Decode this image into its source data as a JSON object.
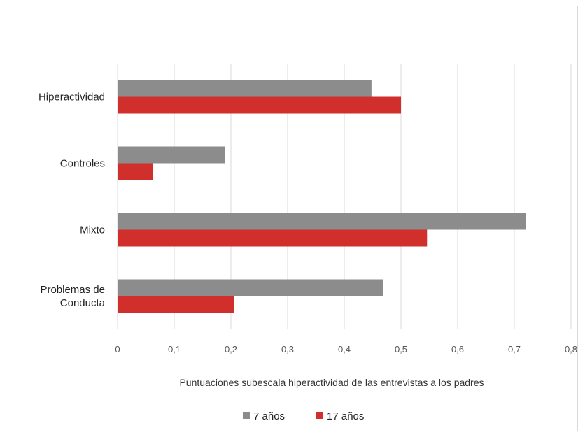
{
  "chart_data": {
    "type": "bar",
    "orientation": "horizontal",
    "categories": [
      "Hiperactividad",
      "Controles",
      "Mixto",
      "Problemas de Conducta"
    ],
    "category_lines": [
      [
        "Hiperactividad"
      ],
      [
        "Controles"
      ],
      [
        "Mixto"
      ],
      [
        "Problemas de",
        "Conducta"
      ]
    ],
    "series": [
      {
        "name": "7 años",
        "color": "#8c8c8c",
        "values": [
          0.448,
          0.19,
          0.72,
          0.468
        ]
      },
      {
        "name": "17 años",
        "color": "#d12f2c",
        "values": [
          0.5,
          0.062,
          0.546,
          0.206
        ]
      }
    ],
    "xlim": [
      0,
      0.8
    ],
    "xticks": [
      0,
      0.1,
      0.2,
      0.3,
      0.4,
      0.5,
      0.6,
      0.7,
      0.8
    ],
    "xtick_labels": [
      "0",
      "0,1",
      "0,2",
      "0,3",
      "0,4",
      "0,5",
      "0,6",
      "0,7",
      "0,8"
    ],
    "xlabel": "Puntuaciones subescala hiperactividad de las entrevistas a los padres",
    "grid": true,
    "legend_position": "bottom",
    "gridline_color": "#d9d9d9"
  }
}
